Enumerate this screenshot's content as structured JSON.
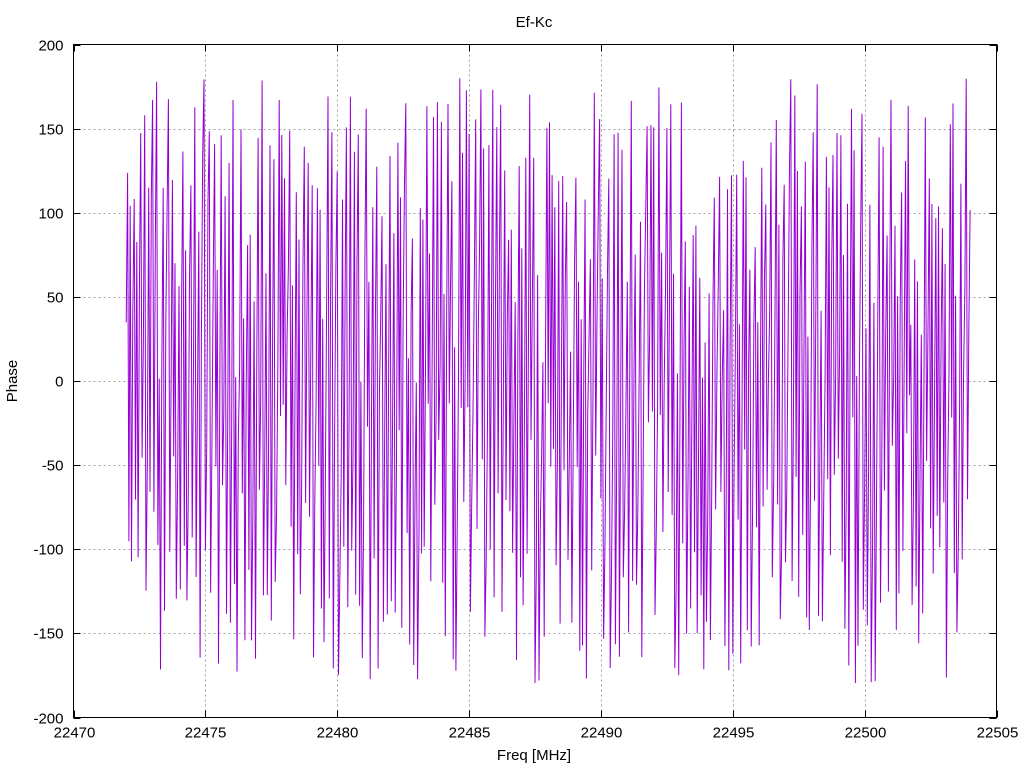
{
  "chart_data": {
    "type": "line",
    "title": "Ef-Kc",
    "xlabel": "Freq [MHz]",
    "ylabel": "Phase",
    "xlim": [
      22470,
      22505
    ],
    "ylim": [
      -200,
      200
    ],
    "xticks": [
      22470,
      22475,
      22480,
      22485,
      22490,
      22495,
      22500,
      22505
    ],
    "yticks": [
      -200,
      -150,
      -100,
      -50,
      0,
      50,
      100,
      150,
      200
    ],
    "grid": true,
    "series": [
      {
        "color": "#9400d3",
        "x_start": 22472.0,
        "x_end": 22504.0,
        "x_step": 0.05,
        "points_note": "dense wrapped phase trace",
        "values": []
      }
    ]
  }
}
